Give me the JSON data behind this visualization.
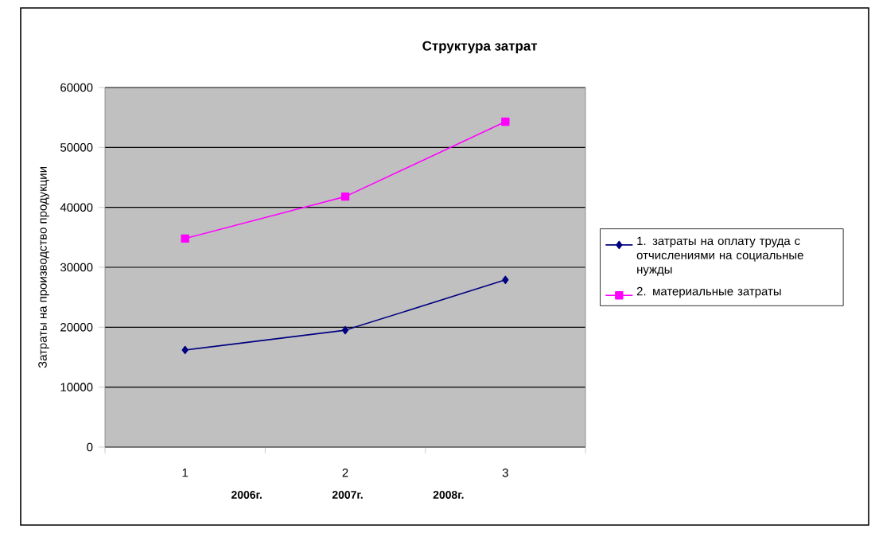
{
  "chart_data": {
    "type": "line",
    "title": "Структура затрат",
    "ylabel": "Затраты на производство продукции",
    "categories": [
      "1",
      "2",
      "3"
    ],
    "series": [
      {
        "name": "1. затраты на оплату труда с отчислениями на социальные нужды",
        "color": "#000080",
        "marker": "diamond",
        "values": [
          16200,
          19500,
          27900
        ]
      },
      {
        "name": "2. материальные затраты",
        "color": "#ff00ff",
        "marker": "square",
        "values": [
          34800,
          41800,
          54300
        ]
      }
    ],
    "ylim": [
      0,
      60000
    ],
    "yticks": [
      0,
      10000,
      20000,
      30000,
      40000,
      50000,
      60000
    ],
    "grid": "y",
    "legend": "right",
    "annotations": [
      "2006г.",
      "2007г.",
      "2008г."
    ]
  }
}
